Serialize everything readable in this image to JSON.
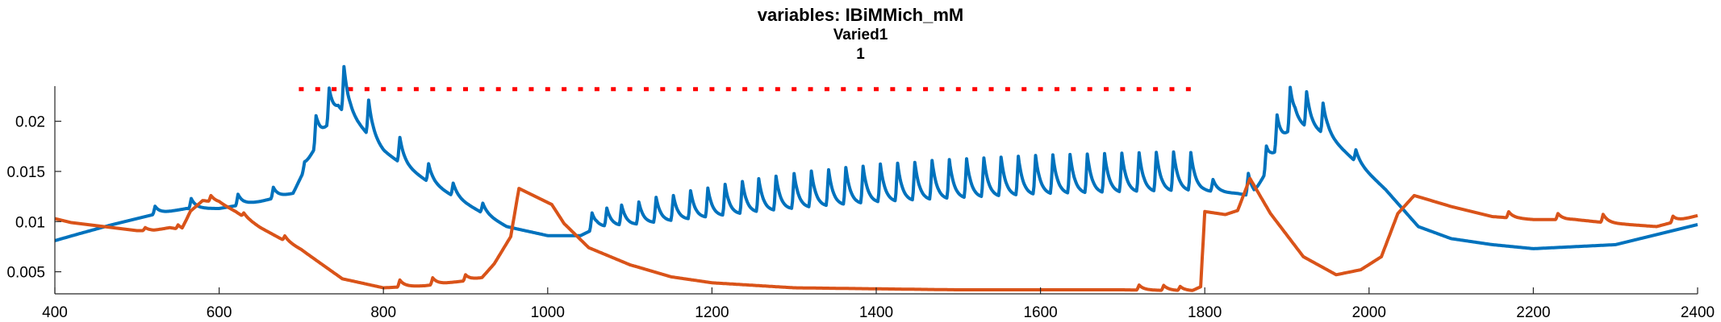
{
  "chart_data": {
    "type": "line",
    "title": "variables: IBiMMich_mM",
    "subtitle1": "Varied1",
    "subtitle2": "1",
    "xlim": [
      400,
      2400
    ],
    "ylim": [
      0.0028,
      0.0235
    ],
    "x_ticks": [
      400,
      600,
      800,
      1000,
      1200,
      1400,
      1600,
      1800,
      2000,
      2200,
      2400
    ],
    "y_ticks": [
      0.005,
      0.01,
      0.015,
      0.02
    ],
    "y_tick_labels": [
      "0.005",
      "0.01",
      "0.015",
      "0.02"
    ],
    "colors": {
      "blue": "#0072BD",
      "orange": "#D95319",
      "marker": "#FF0000"
    },
    "stimulus_markers": {
      "y": 0.0232,
      "x_start": 700,
      "x_end": 1780,
      "spacing": 20
    },
    "series": [
      {
        "color": "#0072BD",
        "base": [
          [
            400,
            0.0081
          ],
          [
            430,
            0.0088
          ],
          [
            470,
            0.0097
          ],
          [
            520,
            0.0107
          ],
          [
            560,
            0.0113
          ],
          [
            600,
            0.0113
          ],
          [
            650,
            0.012
          ],
          [
            690,
            0.0128
          ],
          [
            700,
            0.0145
          ],
          [
            720,
            0.0178
          ],
          [
            745,
            0.021
          ],
          [
            760,
            0.0205
          ],
          [
            800,
            0.017
          ],
          [
            850,
            0.0142
          ],
          [
            900,
            0.0118
          ],
          [
            950,
            0.0095
          ],
          [
            1000,
            0.0086
          ],
          [
            1040,
            0.0086
          ],
          [
            1060,
            0.0094
          ],
          [
            1100,
            0.0096
          ],
          [
            1200,
            0.0104
          ],
          [
            1300,
            0.0112
          ],
          [
            1400,
            0.0118
          ],
          [
            1500,
            0.0122
          ],
          [
            1600,
            0.0126
          ],
          [
            1700,
            0.0128
          ],
          [
            1800,
            0.013
          ],
          [
            1840,
            0.0128
          ],
          [
            1860,
            0.0125
          ],
          [
            1880,
            0.0158
          ],
          [
            1910,
            0.0197
          ],
          [
            1950,
            0.0185
          ],
          [
            1990,
            0.0155
          ],
          [
            2020,
            0.0132
          ],
          [
            2060,
            0.0095
          ],
          [
            2100,
            0.0083
          ],
          [
            2150,
            0.0077
          ],
          [
            2200,
            0.0073
          ],
          [
            2300,
            0.0077
          ],
          [
            2400,
            0.0097
          ]
        ],
        "peaks": [
          [
            522,
            0.0008
          ],
          [
            566,
            0.001
          ],
          [
            623,
            0.0011
          ],
          [
            666,
            0.0011
          ],
          [
            704,
            0.0008
          ],
          [
            718,
            0.003
          ],
          [
            734,
            0.0035
          ],
          [
            752,
            0.0045
          ],
          [
            782,
            0.0035
          ],
          [
            820,
            0.0025
          ],
          [
            855,
            0.0018
          ],
          [
            885,
            0.0013
          ],
          [
            921,
            0.001
          ],
          [
            1054,
            0.0017
          ],
          [
            1072,
            0.0018
          ],
          [
            1090,
            0.002
          ],
          [
            1111,
            0.0022
          ],
          [
            1132,
            0.0025
          ],
          [
            1153,
            0.0025
          ],
          [
            1174,
            0.0028
          ],
          [
            1195,
            0.0029
          ],
          [
            1216,
            0.0031
          ],
          [
            1237,
            0.0032
          ],
          [
            1257,
            0.0033
          ],
          [
            1278,
            0.0034
          ],
          [
            1300,
            0.0035
          ],
          [
            1321,
            0.0036
          ],
          [
            1342,
            0.0036
          ],
          [
            1363,
            0.0037
          ],
          [
            1384,
            0.0037
          ],
          [
            1405,
            0.0038
          ],
          [
            1426,
            0.0038
          ],
          [
            1447,
            0.0038
          ],
          [
            1468,
            0.0039
          ],
          [
            1489,
            0.0039
          ],
          [
            1510,
            0.0039
          ],
          [
            1531,
            0.0039
          ],
          [
            1552,
            0.0039
          ],
          [
            1573,
            0.0039
          ],
          [
            1594,
            0.0039
          ],
          [
            1615,
            0.0039
          ],
          [
            1636,
            0.0039
          ],
          [
            1657,
            0.0039
          ],
          [
            1678,
            0.0039
          ],
          [
            1699,
            0.0039
          ],
          [
            1720,
            0.0039
          ],
          [
            1741,
            0.0039
          ],
          [
            1762,
            0.0039
          ],
          [
            1783,
            0.0038
          ],
          [
            1810,
            0.0012
          ],
          [
            1853,
            0.0022
          ],
          [
            1875,
            0.0025
          ],
          [
            1888,
            0.0035
          ],
          [
            1904,
            0.0042
          ],
          [
            1924,
            0.0035
          ],
          [
            1944,
            0.003
          ],
          [
            1984,
            0.0012
          ]
        ]
      },
      {
        "color": "#D95319",
        "base": [
          [
            400,
            0.0103
          ],
          [
            420,
            0.0099
          ],
          [
            450,
            0.0096
          ],
          [
            500,
            0.0091
          ],
          [
            520,
            0.0091
          ],
          [
            540,
            0.0094
          ],
          [
            555,
            0.0092
          ],
          [
            565,
            0.011
          ],
          [
            580,
            0.0121
          ],
          [
            600,
            0.0119
          ],
          [
            620,
            0.011
          ],
          [
            650,
            0.0094
          ],
          [
            700,
            0.0072
          ],
          [
            750,
            0.0043
          ],
          [
            800,
            0.0034
          ],
          [
            850,
            0.0036
          ],
          [
            900,
            0.0041
          ],
          [
            920,
            0.0044
          ],
          [
            935,
            0.0058
          ],
          [
            955,
            0.0085
          ],
          [
            965,
            0.0133
          ],
          [
            985,
            0.0125
          ],
          [
            1005,
            0.0117
          ],
          [
            1020,
            0.0098
          ],
          [
            1050,
            0.0074
          ],
          [
            1100,
            0.0057
          ],
          [
            1150,
            0.0045
          ],
          [
            1200,
            0.0039
          ],
          [
            1300,
            0.0034
          ],
          [
            1400,
            0.0033
          ],
          [
            1500,
            0.0032
          ],
          [
            1600,
            0.0032
          ],
          [
            1700,
            0.0032
          ],
          [
            1785,
            0.0031
          ],
          [
            1795,
            0.0035
          ],
          [
            1800,
            0.011
          ],
          [
            1825,
            0.0107
          ],
          [
            1840,
            0.0111
          ],
          [
            1855,
            0.0143
          ],
          [
            1880,
            0.0108
          ],
          [
            1920,
            0.0065
          ],
          [
            1960,
            0.0047
          ],
          [
            1990,
            0.0052
          ],
          [
            2015,
            0.0065
          ],
          [
            2035,
            0.0108
          ],
          [
            2055,
            0.0126
          ],
          [
            2100,
            0.0115
          ],
          [
            2150,
            0.0105
          ],
          [
            2200,
            0.0102
          ],
          [
            2250,
            0.0102
          ],
          [
            2300,
            0.0098
          ],
          [
            2350,
            0.0095
          ],
          [
            2400,
            0.0106
          ]
        ],
        "peaks": [
          [
            510,
            0.0003
          ],
          [
            550,
            0.0004
          ],
          [
            590,
            0.0006
          ],
          [
            630,
            0.0004
          ],
          [
            680,
            0.0005
          ],
          [
            820,
            0.0007
          ],
          [
            860,
            0.0007
          ],
          [
            900,
            0.0006
          ],
          [
            1720,
            0.0005
          ],
          [
            1750,
            0.0005
          ],
          [
            1770,
            0.0004
          ],
          [
            2170,
            0.0006
          ],
          [
            2230,
            0.0006
          ],
          [
            2285,
            0.0008
          ],
          [
            2370,
            0.0006
          ]
        ]
      }
    ]
  }
}
